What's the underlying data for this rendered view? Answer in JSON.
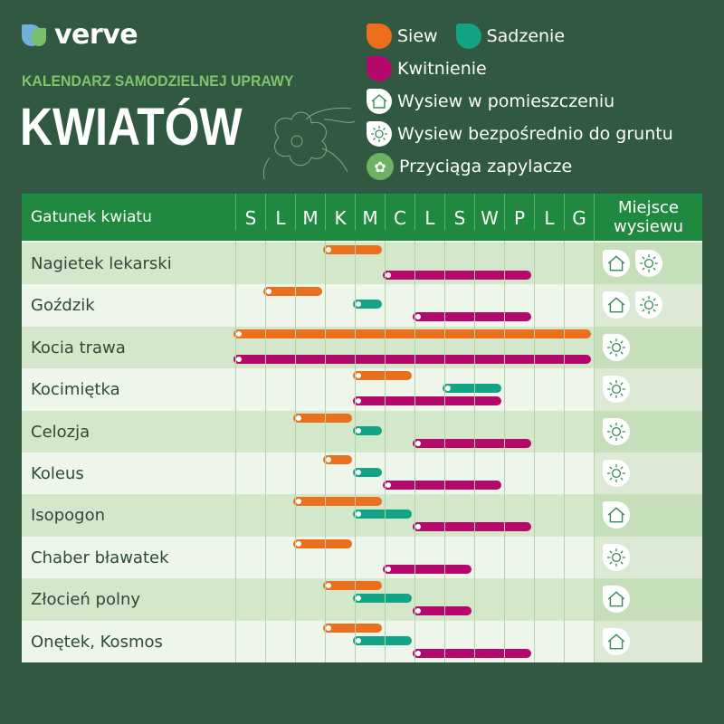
{
  "brand": {
    "name": "verve"
  },
  "header": {
    "subtitle": "KALENDARZ SAMODZIELNEJ UPRAWY",
    "title": "KWIATÓW"
  },
  "legend": {
    "siew": "Siew",
    "sadzenie": "Sadzenie",
    "kwitnienie": "Kwitnienie",
    "indoor": "Wysiew w pomieszczeniu",
    "direct": "Wysiew bezpośrednio do gruntu",
    "pollinators": "Przyciąga zapylacze"
  },
  "colors": {
    "siew": "#ec6f1d",
    "sadzenie": "#12a585",
    "kwitnienie": "#b4086c",
    "background": "#315840",
    "header": "#1f8a3f"
  },
  "table": {
    "name_header": "Gatunek kwiatu",
    "place_header_1": "Miejsce",
    "place_header_2": "wysiewu"
  },
  "chart_data": {
    "type": "bar",
    "categories": [
      "S",
      "L",
      "M",
      "K",
      "M",
      "C",
      "L",
      "S",
      "W",
      "P",
      "L",
      "G"
    ],
    "rows": [
      {
        "name": "Nagietek lekarski",
        "siew": [
          4,
          5
        ],
        "sadzenie": null,
        "kwitnienie": [
          6,
          10
        ],
        "place": [
          "house-icon",
          "sun-icon"
        ]
      },
      {
        "name": "Goździk",
        "siew": [
          2,
          3
        ],
        "sadzenie": [
          5,
          5
        ],
        "kwitnienie": [
          7,
          10
        ],
        "place": [
          "house-icon",
          "sun-icon"
        ]
      },
      {
        "name": "Kocia trawa",
        "siew": [
          1,
          12
        ],
        "sadzenie": null,
        "kwitnienie": [
          1,
          12
        ],
        "place": [
          "sun-icon"
        ]
      },
      {
        "name": "Kocimiętka",
        "siew": [
          5,
          6
        ],
        "sadzenie": [
          8,
          9
        ],
        "kwitnienie": [
          5,
          9
        ],
        "place": [
          "sun-icon"
        ]
      },
      {
        "name": "Celozja",
        "siew": [
          3,
          4
        ],
        "sadzenie": [
          5,
          5
        ],
        "kwitnienie": [
          7,
          10
        ],
        "place": [
          "sun-icon"
        ]
      },
      {
        "name": "Koleus",
        "siew": [
          4,
          4
        ],
        "sadzenie": [
          5,
          5
        ],
        "kwitnienie": [
          6,
          9
        ],
        "place": [
          "sun-icon"
        ]
      },
      {
        "name": "Isopogon",
        "siew": [
          3,
          5
        ],
        "sadzenie": [
          5,
          6
        ],
        "kwitnienie": [
          7,
          10
        ],
        "place": [
          "house-icon"
        ]
      },
      {
        "name": "Chaber bławatek",
        "siew": [
          3,
          4
        ],
        "sadzenie": null,
        "kwitnienie": [
          6,
          8
        ],
        "place": [
          "sun-icon"
        ]
      },
      {
        "name": "Złocień polny",
        "siew": [
          4,
          5
        ],
        "sadzenie": [
          5,
          6
        ],
        "kwitnienie": [
          7,
          8
        ],
        "place": [
          "house-icon"
        ]
      },
      {
        "name": "Onętek, Kosmos",
        "siew": [
          4,
          5
        ],
        "sadzenie": [
          5,
          6
        ],
        "kwitnienie": [
          7,
          10
        ],
        "place": [
          "house-icon"
        ]
      }
    ]
  }
}
